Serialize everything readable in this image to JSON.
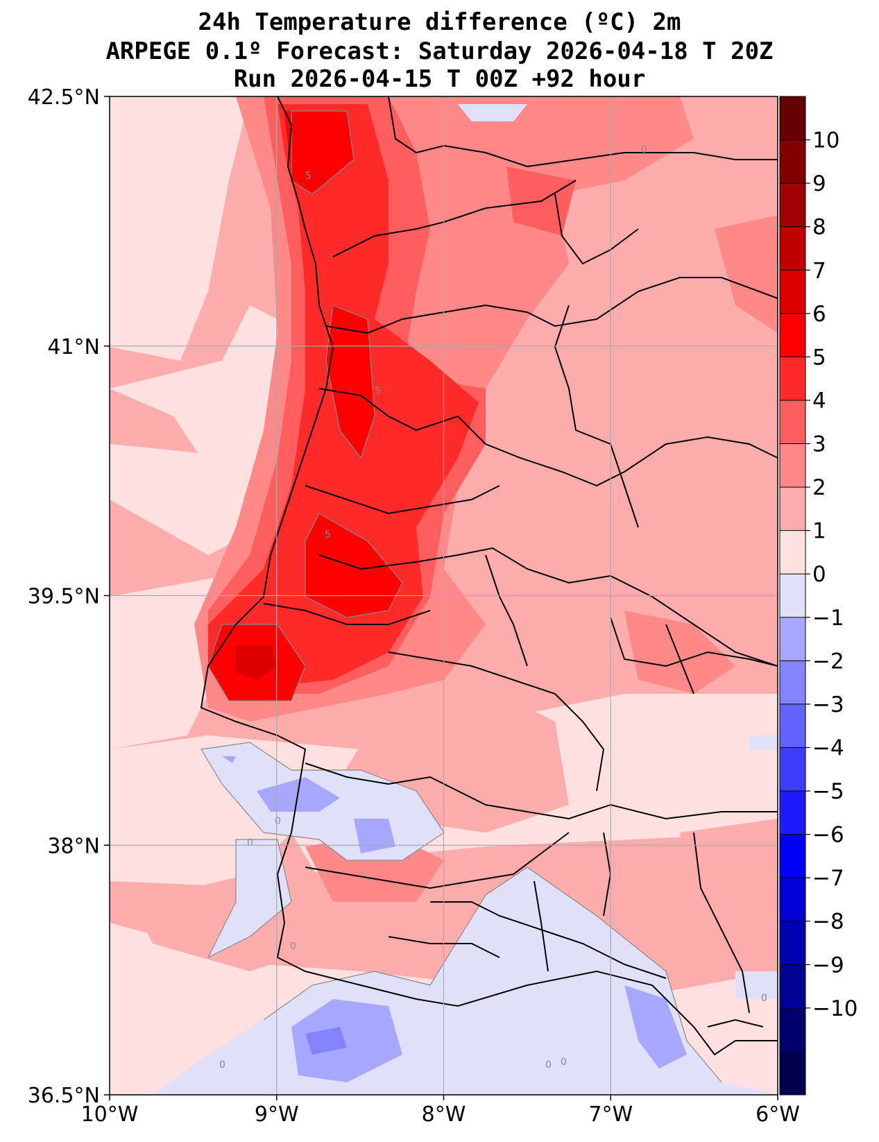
{
  "title": {
    "line1": "24h Temperature difference (ºC) 2m",
    "line2": "ARPEGE 0.1º Forecast: Saturday 2026-04-18 T 20Z",
    "line3": "Run 2026-04-15 T 00Z +92 hour"
  },
  "map": {
    "extent": {
      "lon_min": -10,
      "lon_max": -6,
      "lat_min": 36.5,
      "lat_max": 42.5
    },
    "lat_ticks": [
      {
        "value": 42.5,
        "label": "42.5°N"
      },
      {
        "value": 41,
        "label": "41°N"
      },
      {
        "value": 39.5,
        "label": "39.5°N"
      },
      {
        "value": 38,
        "label": "38°N"
      },
      {
        "value": 36.5,
        "label": "36.5°N"
      }
    ],
    "lon_ticks": [
      {
        "value": -10,
        "label": "10°W"
      },
      {
        "value": -9,
        "label": "9°W"
      },
      {
        "value": -8,
        "label": "8°W"
      },
      {
        "value": -7,
        "label": "7°W"
      },
      {
        "value": -6,
        "label": "6°W"
      }
    ],
    "contour_labels": [
      "5",
      "5",
      "5",
      "0",
      "0",
      "0",
      "0",
      "0",
      "0",
      "0",
      "0"
    ]
  },
  "colorbar": {
    "levels": [
      -11,
      -10,
      -9,
      -8,
      -7,
      -6,
      -5,
      -4,
      -3,
      -2,
      -1,
      0,
      1,
      2,
      3,
      4,
      5,
      6,
      7,
      8,
      9,
      10,
      11
    ],
    "colors": [
      "#00004c",
      "#00006e",
      "#000091",
      "#0000b3",
      "#0000d6",
      "#0000f8",
      "#1c1cff",
      "#3d3dff",
      "#6161ff",
      "#8383ff",
      "#a7a7ff",
      "#e0e0fa",
      "#ffe0e0",
      "#ffacac",
      "#ff8888",
      "#ff5e5e",
      "#ff2a2a",
      "#ff0000",
      "#de0000",
      "#c20000",
      "#a00000",
      "#820000",
      "#650000"
    ],
    "tick_labels": [
      "10",
      "9",
      "8",
      "7",
      "6",
      "5",
      "4",
      "3",
      "2",
      "1",
      "0",
      "−1",
      "−2",
      "−3",
      "−4",
      "−5",
      "−6",
      "−7",
      "−8",
      "−9",
      "−10"
    ]
  }
}
